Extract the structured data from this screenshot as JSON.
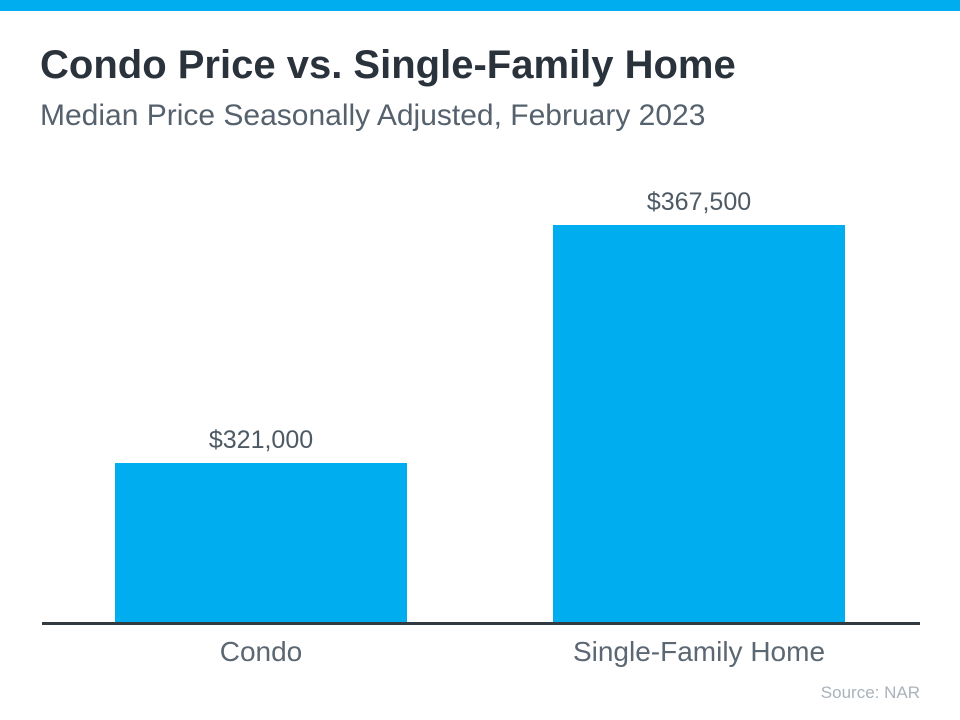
{
  "page": {
    "title": "Condo Price vs. Single-Family Home",
    "subtitle": "Median Price Seasonally Adjusted, February 2023",
    "source": "Source: NAR"
  },
  "colors": {
    "accent_stripe": "#00AEEF",
    "bar": "#00AEEF",
    "axis_line": "#333B41",
    "title_text": "#2A333C",
    "subtitle_text": "#55626D",
    "value_label_text": "#4D5A64",
    "category_label_text": "#5B6772",
    "source_text": "#A9B2BA"
  },
  "chart_data": {
    "type": "bar",
    "title": "Condo Price vs. Single-Family Home",
    "subtitle": "Median Price Seasonally Adjusted, February 2023",
    "categories": [
      "Condo",
      "Single-Family Home"
    ],
    "values": [
      321000,
      367500
    ],
    "value_labels": [
      "$321,000",
      "$367,500"
    ],
    "ylabel": "",
    "xlabel": "",
    "ylim": [
      290000,
      370000
    ],
    "grid": false,
    "legend_position": "none",
    "bar_color": "#00AEEF",
    "source": "Source: NAR"
  }
}
